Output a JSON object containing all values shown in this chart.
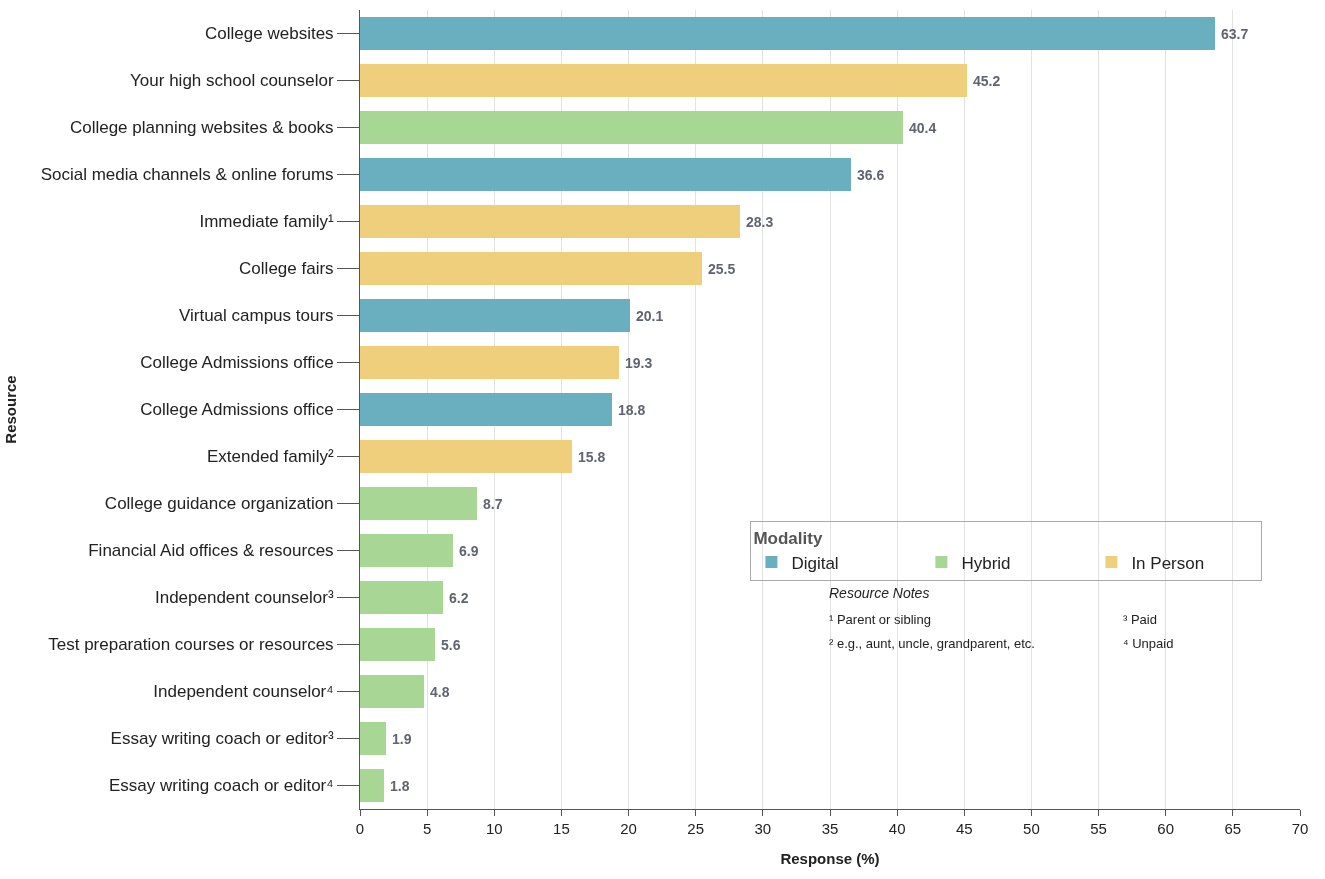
{
  "chart_data": {
    "type": "bar",
    "orientation": "horizontal",
    "stacked": true,
    "xlabel": "Response (%)",
    "ylabel": "Resource",
    "legend_title": "Modality",
    "categories": [
      "College websites",
      "Your high school counselor",
      "College planning websites & books",
      "Social media channels & online forums",
      "Immediate family¹",
      "College fairs",
      "Virtual campus tours",
      "College Admissions office",
      "College Admissions office",
      "Extended family²",
      "College guidance organization",
      "Financial Aid offices & resources",
      "Independent counselor³",
      "Test preparation courses or resources",
      "Independent counselor⁴",
      "Essay writing coach or editor³",
      "Essay writing coach or editor⁴"
    ],
    "series": [
      {
        "name": "Digital",
        "color": "#6aafc0",
        "values": [
          63.7,
          null,
          null,
          36.6,
          null,
          null,
          20.1,
          null,
          18.8,
          null,
          null,
          null,
          null,
          null,
          null,
          null,
          null
        ]
      },
      {
        "name": "Hybrid",
        "color": "#a8d695",
        "values": [
          null,
          null,
          40.4,
          null,
          null,
          null,
          null,
          null,
          null,
          null,
          8.7,
          6.9,
          6.2,
          5.6,
          4.8,
          1.9,
          1.8
        ]
      },
      {
        "name": "In Person",
        "color": "#efcf7c",
        "values": [
          null,
          45.2,
          null,
          null,
          28.3,
          25.5,
          null,
          19.3,
          null,
          15.8,
          null,
          null,
          null,
          null,
          null,
          null,
          null
        ]
      }
    ],
    "xlim": [
      0,
      70
    ],
    "xticks": [
      0,
      5,
      10,
      15,
      20,
      25,
      30,
      35,
      40,
      45,
      50,
      55,
      60,
      65,
      70
    ],
    "grid": "x",
    "legend": "bottom right",
    "data_labels": true,
    "annotations": [
      "Resource Notes",
      "¹ Parent or sibling",
      "² e.g., aunt, uncle, grandparent, etc.",
      "³ Paid",
      "⁴ Unpaid"
    ]
  }
}
